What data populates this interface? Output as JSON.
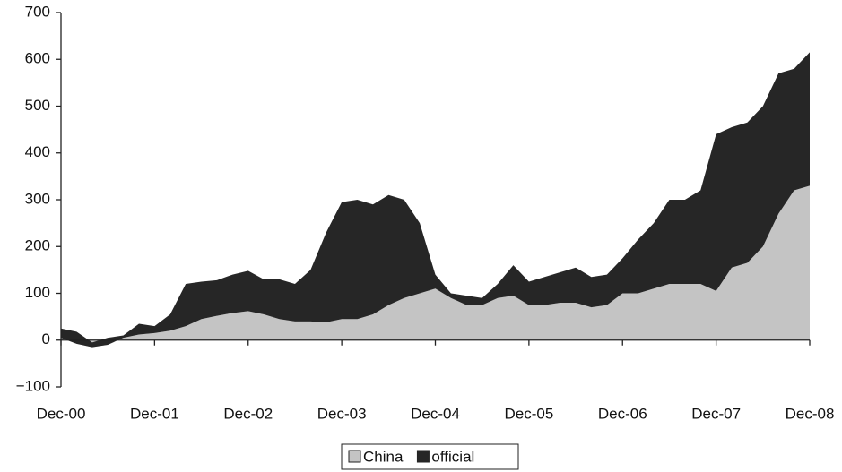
{
  "chart_data": {
    "type": "stacked-area",
    "categories": [
      "Dec-00",
      null,
      null,
      null,
      null,
      null,
      "Dec-01",
      null,
      null,
      null,
      null,
      null,
      "Dec-02",
      null,
      null,
      null,
      null,
      null,
      "Dec-03",
      null,
      null,
      null,
      null,
      null,
      "Dec-04",
      null,
      null,
      null,
      null,
      null,
      "Dec-05",
      null,
      null,
      null,
      null,
      null,
      "Dec-06",
      null,
      null,
      null,
      null,
      null,
      "Dec-07",
      null,
      null,
      null,
      null,
      null,
      "Dec-08"
    ],
    "series": [
      {
        "name": "China",
        "color": "#c4c4c4",
        "values": [
          5,
          -8,
          -15,
          -10,
          5,
          12,
          15,
          20,
          30,
          45,
          52,
          58,
          62,
          55,
          45,
          40,
          40,
          38,
          45,
          45,
          55,
          75,
          90,
          100,
          110,
          90,
          75,
          75,
          90,
          95,
          75,
          75,
          80,
          80,
          70,
          75,
          100,
          100,
          110,
          120,
          120,
          120,
          105,
          155,
          165,
          200,
          270,
          320,
          330
        ]
      },
      {
        "name": "official",
        "color": "#262626",
        "values": [
          20,
          26,
          10,
          15,
          5,
          23,
          15,
          35,
          90,
          80,
          76,
          82,
          86,
          75,
          85,
          80,
          110,
          192,
          250,
          255,
          235,
          235,
          210,
          150,
          30,
          10,
          20,
          15,
          30,
          65,
          50,
          60,
          65,
          75,
          65,
          65,
          75,
          115,
          140,
          180,
          180,
          200,
          335,
          300,
          300,
          300,
          300,
          260,
          285
        ]
      }
    ],
    "ylim": [
      -100,
      700
    ],
    "yticks": [
      {
        "value": -100,
        "label": "−100"
      },
      0,
      100,
      200,
      300,
      400,
      500,
      600,
      700
    ]
  }
}
